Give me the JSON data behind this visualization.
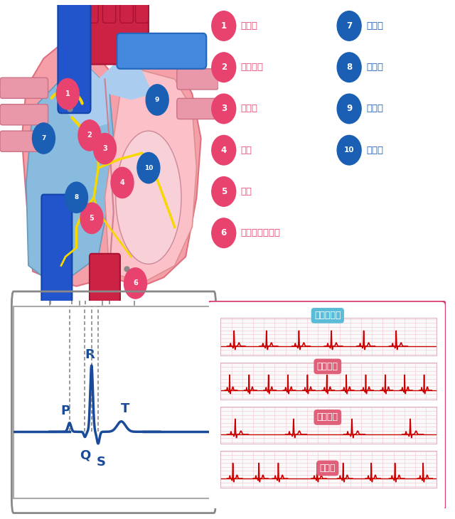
{
  "bg_color": "#ffffff",
  "legend_left": [
    {
      "num": "1",
      "text": "洞結節"
    },
    {
      "num": "2",
      "text": "房室結節"
    },
    {
      "num": "3",
      "text": "ヒス束"
    },
    {
      "num": "4",
      "text": "左脚"
    },
    {
      "num": "5",
      "text": "右脚"
    },
    {
      "num": "6",
      "text": "プルキンエ繊維"
    }
  ],
  "legend_right": [
    {
      "num": "7",
      "text": "右心房"
    },
    {
      "num": "8",
      "text": "右心室"
    },
    {
      "num": "9",
      "text": "左心房"
    },
    {
      "num": "10",
      "text": "左心室"
    }
  ],
  "pink_num_bg": "#e8426e",
  "blue_num_bg": "#1a5fb4",
  "pink_text_color": "#e8426e",
  "blue_text_color": "#1a5fb4",
  "ecg_line_color": "#cc0000",
  "ecg_grid_color": "#f5d0d8",
  "panel_border_color": "#d94070",
  "normal_title_bg": "#5bbcd8",
  "abnormal_title_bg": "#e0607a",
  "ecg_blue": "#1a4a9a"
}
